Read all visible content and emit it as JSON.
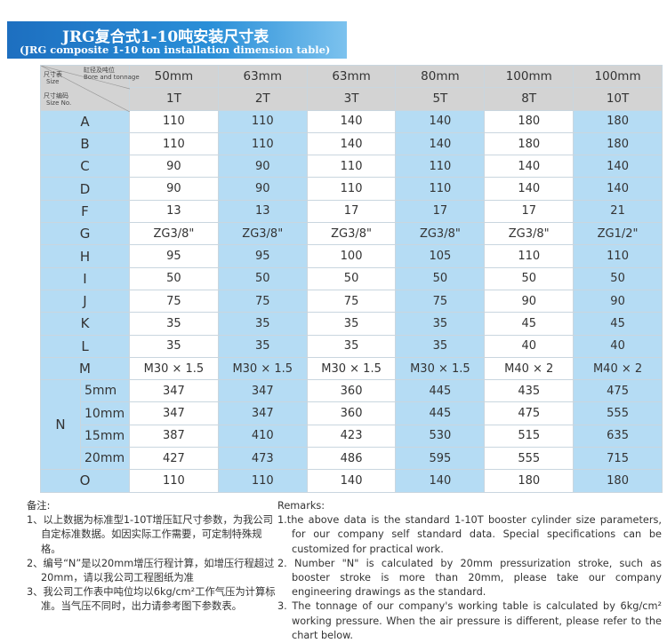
{
  "banner": {
    "title": "JRG复合式1-10吨安装尺寸表",
    "subtitle": "(JRG composite 1-10 ton installation dimension table)"
  },
  "table": {
    "corner": {
      "size_cn": "尺寸表",
      "size_en": "Size",
      "bore_cn": "缸径及吨位",
      "bore_en": "Bore and tonnage",
      "code_cn": "尺寸编码",
      "code_en": "Size No."
    },
    "bores": [
      "50mm",
      "63mm",
      "63mm",
      "80mm",
      "100mm",
      "100mm"
    ],
    "tonnages": [
      "1T",
      "2T",
      "3T",
      "5T",
      "8T",
      "10T"
    ],
    "rows": [
      {
        "label": "A",
        "values": [
          110,
          110,
          140,
          140,
          180,
          180
        ]
      },
      {
        "label": "B",
        "values": [
          110,
          110,
          140,
          140,
          180,
          180
        ]
      },
      {
        "label": "C",
        "values": [
          90,
          90,
          110,
          110,
          140,
          140
        ]
      },
      {
        "label": "D",
        "values": [
          90,
          90,
          110,
          110,
          140,
          140
        ]
      },
      {
        "label": "F",
        "values": [
          13,
          13,
          17,
          17,
          17,
          21
        ]
      },
      {
        "label": "G",
        "values": [
          "ZG3/8\"",
          "ZG3/8\"",
          "ZG3/8\"",
          "ZG3/8\"",
          "ZG3/8\"",
          "ZG1/2\""
        ]
      },
      {
        "label": "H",
        "values": [
          95,
          95,
          100,
          105,
          110,
          110
        ]
      },
      {
        "label": "I",
        "values": [
          50,
          50,
          50,
          50,
          50,
          50
        ]
      },
      {
        "label": "J",
        "values": [
          75,
          75,
          75,
          75,
          90,
          90
        ]
      },
      {
        "label": "K",
        "values": [
          35,
          35,
          35,
          35,
          45,
          45
        ]
      },
      {
        "label": "L",
        "values": [
          35,
          35,
          35,
          35,
          40,
          40
        ]
      },
      {
        "label": "M",
        "values": [
          "M30 × 1.5",
          "M30 × 1.5",
          "M30 × 1.5",
          "M30 × 1.5",
          "M40 × 2",
          "M40 × 2"
        ]
      },
      {
        "label": "N",
        "subrows": [
          {
            "label": "5mm",
            "values": [
              347,
              347,
              360,
              445,
              435,
              475
            ]
          },
          {
            "label": "10mm",
            "values": [
              347,
              347,
              360,
              445,
              475,
              555
            ]
          },
          {
            "label": "15mm",
            "values": [
              387,
              410,
              423,
              530,
              515,
              635
            ]
          },
          {
            "label": "20mm",
            "values": [
              427,
              473,
              486,
              595,
              555,
              715
            ]
          }
        ]
      },
      {
        "label": "O",
        "values": [
          110,
          110,
          140,
          140,
          180,
          180
        ]
      }
    ]
  },
  "remarks_cn": {
    "heading": "备注:",
    "items": [
      "1、以上数据为标准型1-10T增压缸尺寸参数，为我公司自定标准数据。如因实际工作需要，可定制特殊规格。",
      "2、编号“N”是以20mm增压行程计算，如增压行程超过20mm，请以我公司工程图纸为准",
      "3、我公司工作表中吨位均以6kg/cm²工作气压为计算标准。当气压不同时，出力请参考图下参数表。"
    ]
  },
  "remarks_en": {
    "heading": "Remarks:",
    "items": [
      "1.the above data is the standard 1-10T booster cylinder size parameters, for our company self standard data. Special specifications can be customized for practical work.",
      "2. Number \"N\" is calculated by 20mm pressurization stroke, such as booster stroke is more than 20mm, please take our company engineering drawings as the standard.",
      "3. The tonnage of our company's working table is calculated by 6kg/cm² working pressure. When the air pressure is different, please refer to the chart below."
    ]
  }
}
